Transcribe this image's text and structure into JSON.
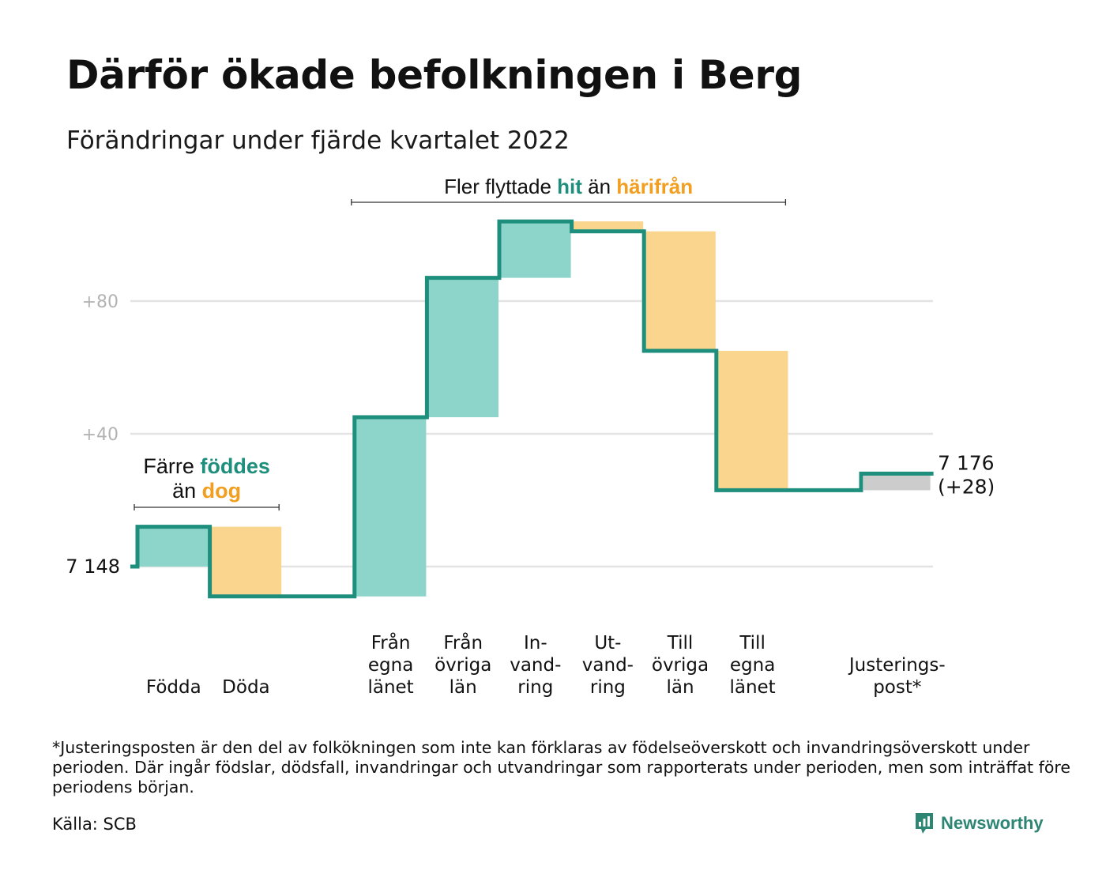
{
  "header": {
    "title": "Därför ökade befolkningen i Berg",
    "subtitle": "Förändringar under fjärde kvartalet 2022"
  },
  "colors": {
    "increase": "#8dd4ca",
    "decrease": "#fad58d",
    "adjustment": "#cccccc",
    "line": "#1e8f7c",
    "teal_text": "#1e8f7c",
    "orange_text": "#f29e1f",
    "grid": "#e3e3e3",
    "tick_text": "#b3b3b3"
  },
  "chart_data": {
    "type": "waterfall",
    "start_value": 7148,
    "start_label": "7 148",
    "end_label": "7 176",
    "end_change_label": "(+28)",
    "ytick_labels": [
      {
        "value": 40,
        "label": "+40"
      },
      {
        "value": 80,
        "label": "+80"
      }
    ],
    "ylim": [
      -15,
      105
    ],
    "grid": true,
    "steps": [
      {
        "lines": [
          "Födda"
        ],
        "change": 12,
        "kind": "increase"
      },
      {
        "lines": [
          "Döda"
        ],
        "change": -21,
        "kind": "decrease"
      },
      {
        "lines": [],
        "change": 0,
        "kind": "gap"
      },
      {
        "lines": [
          "Från",
          "egna",
          "länet"
        ],
        "change": 54,
        "kind": "increase"
      },
      {
        "lines": [
          "Från",
          "övriga",
          "län"
        ],
        "change": 42,
        "kind": "increase"
      },
      {
        "lines": [
          "In-",
          "vand-",
          "ring"
        ],
        "change": 17,
        "kind": "increase"
      },
      {
        "lines": [
          "Ut-",
          "vand-",
          "ring"
        ],
        "change": -3,
        "kind": "decrease"
      },
      {
        "lines": [
          "Till",
          "övriga",
          "län"
        ],
        "change": -36,
        "kind": "decrease"
      },
      {
        "lines": [
          "Till",
          "egna",
          "länet"
        ],
        "change": -42,
        "kind": "decrease"
      },
      {
        "lines": [],
        "change": 0,
        "kind": "gap"
      },
      {
        "lines": [
          "Justerings-",
          "post*"
        ],
        "change": 5,
        "kind": "adjustment"
      }
    ],
    "annotations": [
      {
        "id": "births-deaths",
        "line1": [
          {
            "text": "Färre ",
            "style": "plain"
          },
          {
            "text": "föddes",
            "style": "teal"
          }
        ],
        "line2": [
          {
            "text": "än ",
            "style": "plain"
          },
          {
            "text": "dog",
            "style": "orange"
          }
        ],
        "spans_steps": [
          0,
          1
        ]
      },
      {
        "id": "migration",
        "line1": [
          {
            "text": "Fler flyttade ",
            "style": "plain"
          },
          {
            "text": "hit",
            "style": "teal"
          },
          {
            "text": " än ",
            "style": "plain"
          },
          {
            "text": "härifrån",
            "style": "orange"
          }
        ],
        "spans_steps": [
          3,
          8
        ]
      }
    ]
  },
  "footnote": "*Justeringsposten är den del av folkökningen som inte kan förklaras av födelseöverskott och invandringsöverskott under perioden. Där ingår födslar, dödsfall, invandringar och utvandringar som rapporterats under perioden, men som inträffat före periodens början.",
  "source": "Källa: SCB",
  "brand": {
    "name": "Newsworthy",
    "logo_icon": "chart-bars-icon"
  }
}
